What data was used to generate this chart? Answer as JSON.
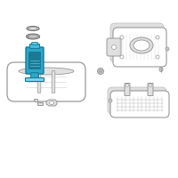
{
  "bg_color": "white",
  "line_color": "#999999",
  "dark_line": "#777777",
  "thin_line": "#bbbbbb",
  "teal_fill": "#2ba8c8",
  "teal_dark": "#1a7a96",
  "teal_mid": "#3dc0e0",
  "teal_light": "#7ad4ec",
  "gray_fill": "#c8c8c8",
  "gray_light": "#e0e0e0",
  "gray_mid": "#b0b0b0",
  "figsize": [
    2.0,
    2.0
  ],
  "dpi": 100
}
